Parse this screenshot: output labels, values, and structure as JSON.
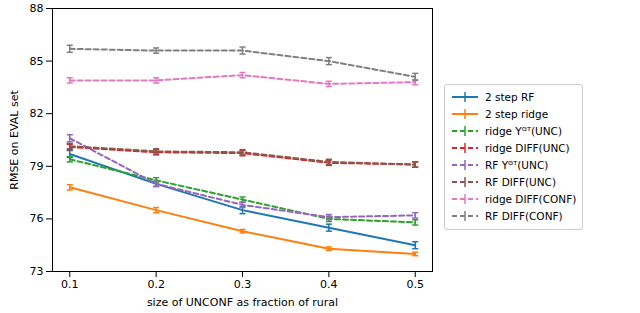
{
  "chart_data": {
    "type": "line",
    "x_label": "size of UNCONF as fraction of rural",
    "y_label": "RMSE on EVAL set",
    "x": [
      0.1,
      0.2,
      0.3,
      0.4,
      0.5
    ],
    "xlim": [
      0.08,
      0.52
    ],
    "xticks": [
      0.1,
      0.2,
      0.3,
      0.4,
      0.5
    ],
    "ylim": [
      73,
      88
    ],
    "yticks": [
      73,
      76,
      79,
      82,
      85,
      88
    ],
    "grid": false,
    "legend": "right",
    "marker": "errorbar",
    "series": [
      {
        "name": "2 step RF",
        "color": "#1f77b4",
        "line_style": "solid",
        "values": [
          79.7,
          78.0,
          76.5,
          75.5,
          74.5
        ],
        "errors": [
          0.2,
          0.15,
          0.2,
          0.2,
          0.2
        ]
      },
      {
        "name": "2 step ridge",
        "color": "#ff7f0e",
        "line_style": "solid",
        "values": [
          77.8,
          76.5,
          75.3,
          74.3,
          74.0
        ],
        "errors": [
          0.15,
          0.15,
          0.1,
          0.1,
          0.1
        ]
      },
      {
        "name": "ridge Yᴳᵀ(UNC)",
        "color": "#2ca02c",
        "line_style": "dashed",
        "values": [
          79.4,
          78.2,
          77.1,
          76.0,
          75.8
        ],
        "errors": [
          0.15,
          0.15,
          0.15,
          0.15,
          0.15
        ]
      },
      {
        "name": "ridge DIFF(UNC)",
        "color": "#d62728",
        "line_style": "dashed",
        "values": [
          80.1,
          79.8,
          79.75,
          79.2,
          79.1
        ],
        "errors": [
          0.15,
          0.15,
          0.15,
          0.15,
          0.15
        ]
      },
      {
        "name": "RF Yᴳᵀ(UNC)",
        "color": "#9467bd",
        "line_style": "dashed",
        "values": [
          80.6,
          78.0,
          76.8,
          76.1,
          76.2
        ],
        "errors": [
          0.2,
          0.15,
          0.15,
          0.15,
          0.15
        ]
      },
      {
        "name": "RF DIFF(UNC)",
        "color": "#8c564b",
        "line_style": "dashed",
        "values": [
          80.15,
          79.85,
          79.8,
          79.25,
          79.1
        ],
        "errors": [
          0.15,
          0.15,
          0.15,
          0.15,
          0.15
        ]
      },
      {
        "name": "ridge DIFF(CONF)",
        "color": "#e377c2",
        "line_style": "dashed",
        "values": [
          83.9,
          83.9,
          84.2,
          83.7,
          83.8
        ],
        "errors": [
          0.15,
          0.15,
          0.15,
          0.15,
          0.15
        ]
      },
      {
        "name": "RF DIFF(CONF)",
        "color": "#7f7f7f",
        "line_style": "dashed",
        "values": [
          85.7,
          85.6,
          85.6,
          85.0,
          84.1
        ],
        "errors": [
          0.2,
          0.15,
          0.2,
          0.2,
          0.2
        ]
      }
    ]
  }
}
